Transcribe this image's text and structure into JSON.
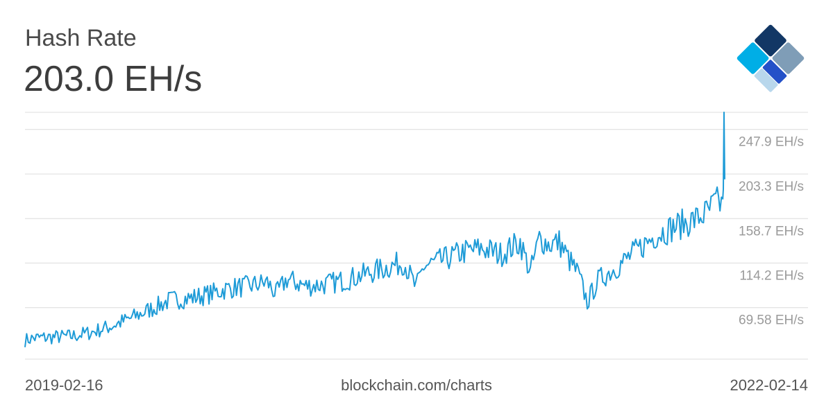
{
  "header": {
    "title": "Hash Rate",
    "value": "203.0 EH/s"
  },
  "logo": {
    "name": "blockchain-logo",
    "colors": [
      "#123765",
      "#7f9db7",
      "#2451c8",
      "#00aee6",
      "#b8d7ec"
    ]
  },
  "footer": {
    "start_date": "2019-02-16",
    "source": "blockchain.com/charts",
    "end_date": "2022-02-14"
  },
  "chart_data": {
    "type": "line",
    "series_color": "#1e9bd7",
    "grid": true,
    "y_tick_labels": [
      "247.9 EH/s",
      "203.3 EH/s",
      "158.7 EH/s",
      "114.2 EH/s",
      "69.58 EH/s"
    ],
    "y_ticks": [
      247.9,
      203.3,
      158.7,
      114.2,
      69.58
    ],
    "ylim": [
      25,
      272
    ],
    "xlim": [
      "2019-02-16",
      "2022-02-14"
    ],
    "x": [
      "2019-02-16",
      "2019-03-01",
      "2019-04-01",
      "2019-05-01",
      "2019-06-01",
      "2019-07-01",
      "2019-08-01",
      "2019-09-01",
      "2019-10-01",
      "2019-11-01",
      "2019-12-01",
      "2020-01-01",
      "2020-02-01",
      "2020-03-01",
      "2020-03-15",
      "2020-04-01",
      "2020-05-01",
      "2020-06-01",
      "2020-07-01",
      "2020-08-01",
      "2020-09-01",
      "2020-10-01",
      "2020-10-20",
      "2020-11-01",
      "2020-12-01",
      "2021-01-01",
      "2021-02-01",
      "2021-03-01",
      "2021-04-01",
      "2021-04-17",
      "2021-05-01",
      "2021-05-15",
      "2021-06-01",
      "2021-06-15",
      "2021-07-01",
      "2021-07-15",
      "2021-08-01",
      "2021-09-01",
      "2021-10-01",
      "2021-11-01",
      "2021-12-01",
      "2022-01-01",
      "2022-01-20",
      "2022-02-01",
      "2022-02-10",
      "2022-02-14"
    ],
    "values": [
      44,
      46,
      47,
      48,
      52,
      58,
      66,
      75,
      84,
      86,
      90,
      96,
      98,
      102,
      90,
      105,
      98,
      100,
      104,
      110,
      116,
      122,
      96,
      118,
      124,
      132,
      136,
      130,
      142,
      112,
      146,
      140,
      142,
      126,
      110,
      82,
      104,
      118,
      134,
      150,
      158,
      165,
      172,
      182,
      180,
      203
    ]
  }
}
